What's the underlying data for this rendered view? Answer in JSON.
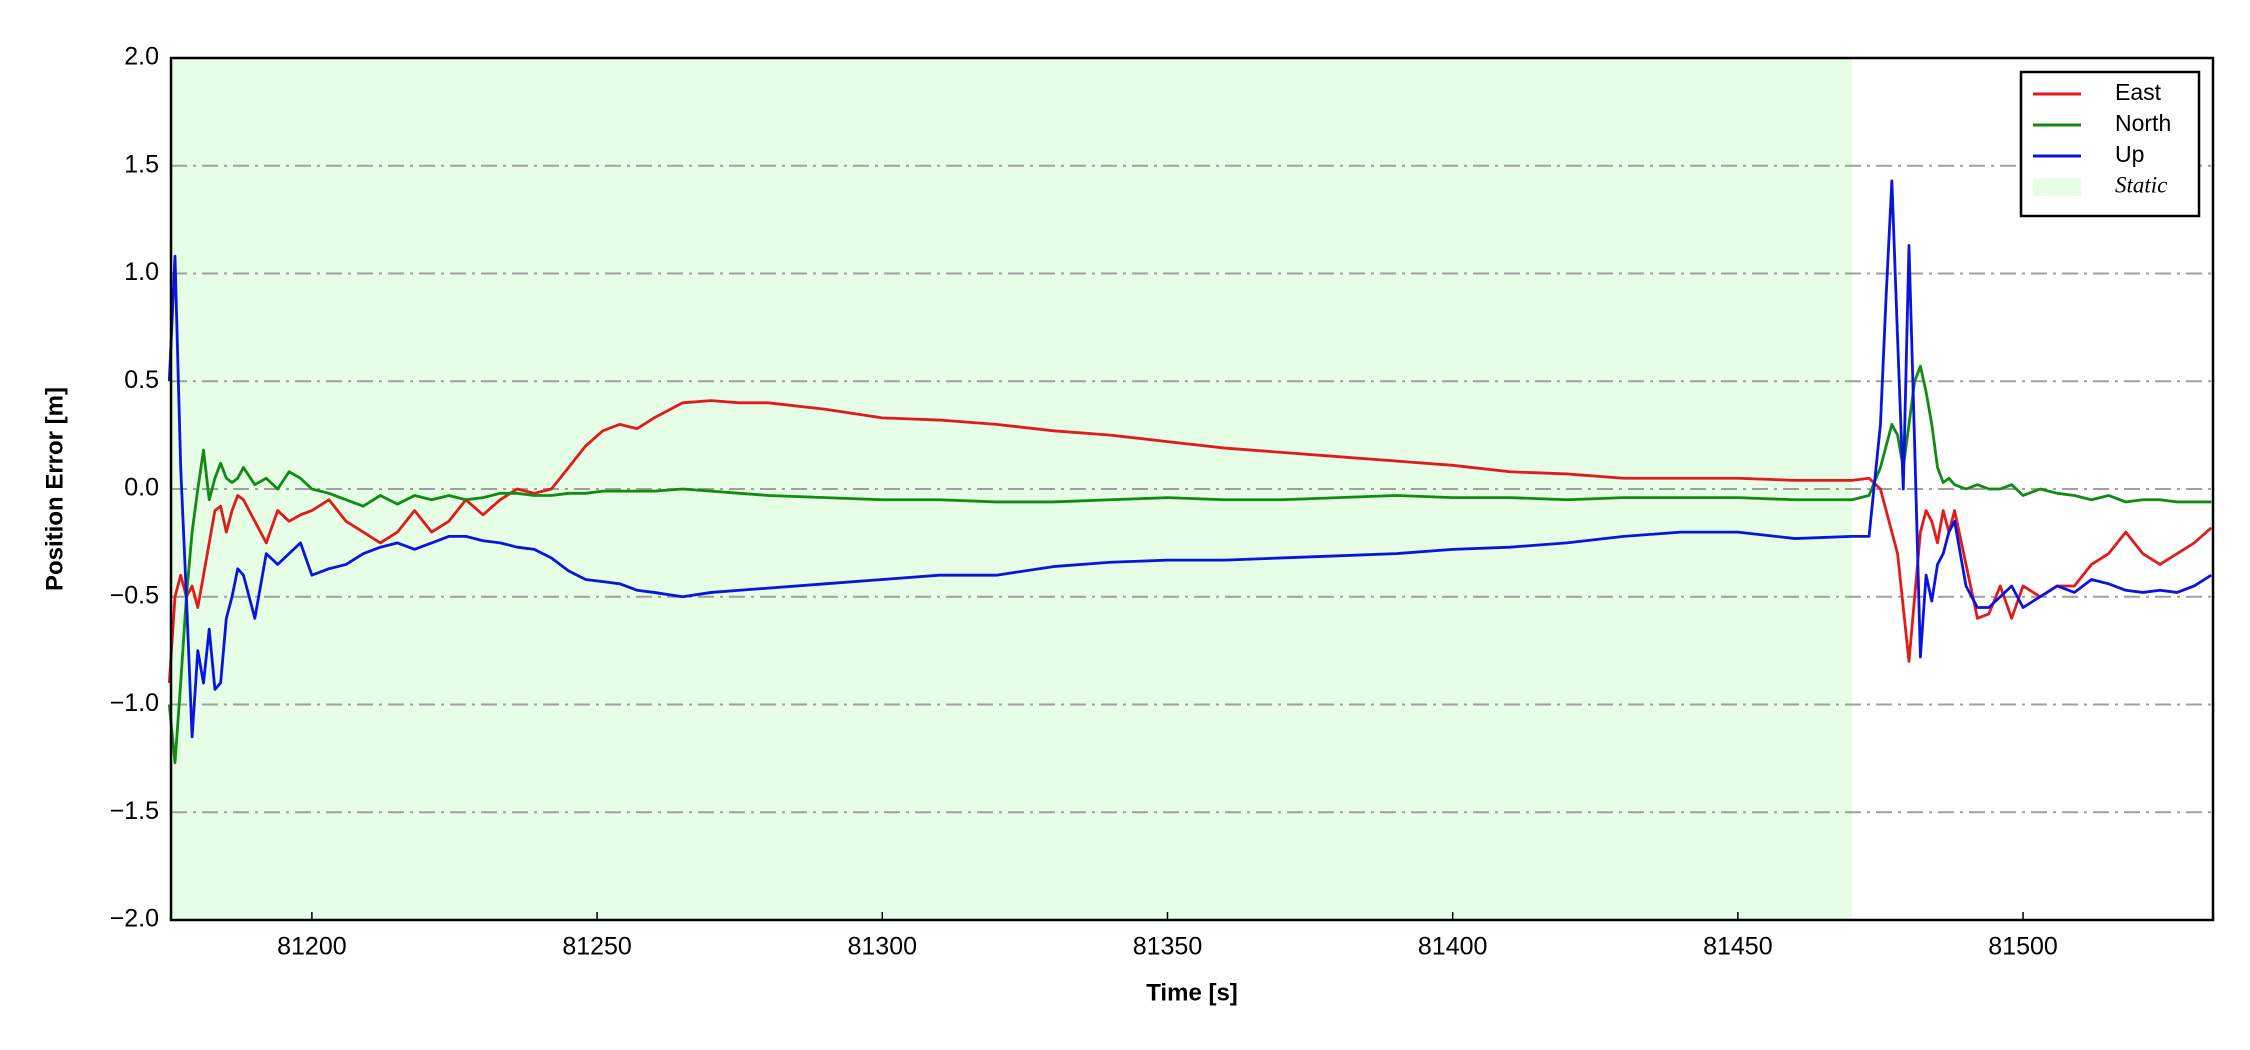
{
  "chart_data": {
    "type": "line",
    "xlabel": "Time [s]",
    "ylabel": "Position Error [m]",
    "x": [
      81175,
      81176,
      81177,
      81178,
      81179,
      81180,
      81181,
      81182,
      81183,
      81184,
      81185,
      81186,
      81187,
      81188,
      81190,
      81192,
      81194,
      81196,
      81198,
      81200,
      81203,
      81206,
      81209,
      81212,
      81215,
      81218,
      81221,
      81224,
      81227,
      81230,
      81233,
      81236,
      81239,
      81242,
      81245,
      81248,
      81251,
      81254,
      81257,
      81260,
      81265,
      81270,
      81275,
      81280,
      81290,
      81300,
      81310,
      81320,
      81330,
      81340,
      81350,
      81360,
      81370,
      81380,
      81390,
      81400,
      81410,
      81420,
      81430,
      81440,
      81450,
      81460,
      81470,
      81473,
      81475,
      81476,
      81477,
      81478,
      81479,
      81480,
      81481,
      81482,
      81483,
      81484,
      81485,
      81486,
      81487,
      81488,
      81490,
      81492,
      81494,
      81496,
      81498,
      81500,
      81503,
      81506,
      81509,
      81512,
      81515,
      81518,
      81521,
      81524,
      81527,
      81530,
      81533
    ],
    "series": [
      {
        "name": "East",
        "color": "#e31a1c",
        "values": [
          -0.9,
          -0.5,
          -0.4,
          -0.5,
          -0.45,
          -0.55,
          -0.4,
          -0.25,
          -0.1,
          -0.08,
          -0.2,
          -0.1,
          -0.03,
          -0.05,
          -0.15,
          -0.25,
          -0.1,
          -0.15,
          -0.12,
          -0.1,
          -0.05,
          -0.15,
          -0.2,
          -0.25,
          -0.2,
          -0.1,
          -0.2,
          -0.15,
          -0.05,
          -0.12,
          -0.05,
          0.0,
          -0.02,
          0.0,
          0.1,
          0.2,
          0.27,
          0.3,
          0.28,
          0.33,
          0.4,
          0.41,
          0.4,
          0.4,
          0.37,
          0.33,
          0.32,
          0.3,
          0.27,
          0.25,
          0.22,
          0.19,
          0.17,
          0.15,
          0.13,
          0.11,
          0.08,
          0.07,
          0.05,
          0.05,
          0.05,
          0.04,
          0.04,
          0.05,
          0.0,
          -0.1,
          -0.2,
          -0.3,
          -0.55,
          -0.8,
          -0.5,
          -0.2,
          -0.1,
          -0.15,
          -0.25,
          -0.1,
          -0.2,
          -0.1,
          -0.35,
          -0.6,
          -0.58,
          -0.45,
          -0.6,
          -0.45,
          -0.5,
          -0.45,
          -0.45,
          -0.35,
          -0.3,
          -0.2,
          -0.3,
          -0.35,
          -0.3,
          -0.25,
          -0.18
        ]
      },
      {
        "name": "North",
        "color": "#138a13",
        "values": [
          -1.0,
          -1.27,
          -0.9,
          -0.5,
          -0.2,
          0.0,
          0.18,
          -0.05,
          0.05,
          0.12,
          0.05,
          0.03,
          0.05,
          0.1,
          0.02,
          0.05,
          0.0,
          0.08,
          0.05,
          0.0,
          -0.02,
          -0.05,
          -0.08,
          -0.03,
          -0.07,
          -0.03,
          -0.05,
          -0.03,
          -0.05,
          -0.04,
          -0.02,
          -0.02,
          -0.03,
          -0.03,
          -0.02,
          -0.02,
          -0.01,
          -0.01,
          -0.01,
          -0.01,
          0.0,
          -0.01,
          -0.02,
          -0.03,
          -0.04,
          -0.05,
          -0.05,
          -0.06,
          -0.06,
          -0.05,
          -0.04,
          -0.05,
          -0.05,
          -0.04,
          -0.03,
          -0.04,
          -0.04,
          -0.05,
          -0.04,
          -0.04,
          -0.04,
          -0.05,
          -0.05,
          -0.03,
          0.1,
          0.2,
          0.3,
          0.25,
          0.1,
          0.3,
          0.5,
          0.57,
          0.45,
          0.3,
          0.1,
          0.03,
          0.05,
          0.02,
          0.0,
          0.02,
          0.0,
          0.0,
          0.02,
          -0.03,
          0.0,
          -0.02,
          -0.03,
          -0.05,
          -0.03,
          -0.06,
          -0.05,
          -0.05,
          -0.06,
          -0.06,
          -0.06
        ]
      },
      {
        "name": "Up",
        "color": "#0a14e0",
        "values": [
          0.5,
          1.08,
          0.1,
          -0.5,
          -1.15,
          -0.75,
          -0.9,
          -0.65,
          -0.93,
          -0.9,
          -0.6,
          -0.5,
          -0.37,
          -0.4,
          -0.6,
          -0.3,
          -0.35,
          -0.3,
          -0.25,
          -0.4,
          -0.37,
          -0.35,
          -0.3,
          -0.27,
          -0.25,
          -0.28,
          -0.25,
          -0.22,
          -0.22,
          -0.24,
          -0.25,
          -0.27,
          -0.28,
          -0.32,
          -0.38,
          -0.42,
          -0.43,
          -0.44,
          -0.47,
          -0.48,
          -0.5,
          -0.48,
          -0.47,
          -0.46,
          -0.44,
          -0.42,
          -0.4,
          -0.4,
          -0.36,
          -0.34,
          -0.33,
          -0.33,
          -0.32,
          -0.31,
          -0.3,
          -0.28,
          -0.27,
          -0.25,
          -0.22,
          -0.2,
          -0.2,
          -0.23,
          -0.22,
          -0.22,
          0.3,
          0.9,
          1.43,
          0.7,
          0.0,
          1.13,
          0.2,
          -0.78,
          -0.4,
          -0.52,
          -0.35,
          -0.3,
          -0.2,
          -0.15,
          -0.45,
          -0.55,
          -0.55,
          -0.5,
          -0.45,
          -0.55,
          -0.5,
          -0.45,
          -0.48,
          -0.42,
          -0.44,
          -0.47,
          -0.48,
          -0.47,
          -0.48,
          -0.45,
          -0.4
        ]
      }
    ],
    "shaded_span": {
      "name": "Static",
      "color": "#e6fde6",
      "x": [
        81175.3,
        81470
      ]
    },
    "xlim": [
      81175.3,
      81533.3
    ],
    "ylim": [
      -2.0,
      2.0
    ],
    "xticks": [
      81200,
      81250,
      81300,
      81350,
      81400,
      81450,
      81500
    ],
    "yticks": [
      {
        "value": -2.0,
        "label": "−2.0"
      },
      {
        "value": -1.5,
        "label": "−1.5"
      },
      {
        "value": -1.0,
        "label": "−1.0"
      },
      {
        "value": -0.5,
        "label": "−0.5"
      },
      {
        "value": 0.0,
        "label": "0.0"
      },
      {
        "value": 0.5,
        "label": "0.5"
      },
      {
        "value": 1.0,
        "label": "1.0"
      },
      {
        "value": 1.5,
        "label": "1.5"
      },
      {
        "value": 2.0,
        "label": "2.0"
      }
    ],
    "grid": true,
    "legend": "upper right"
  }
}
